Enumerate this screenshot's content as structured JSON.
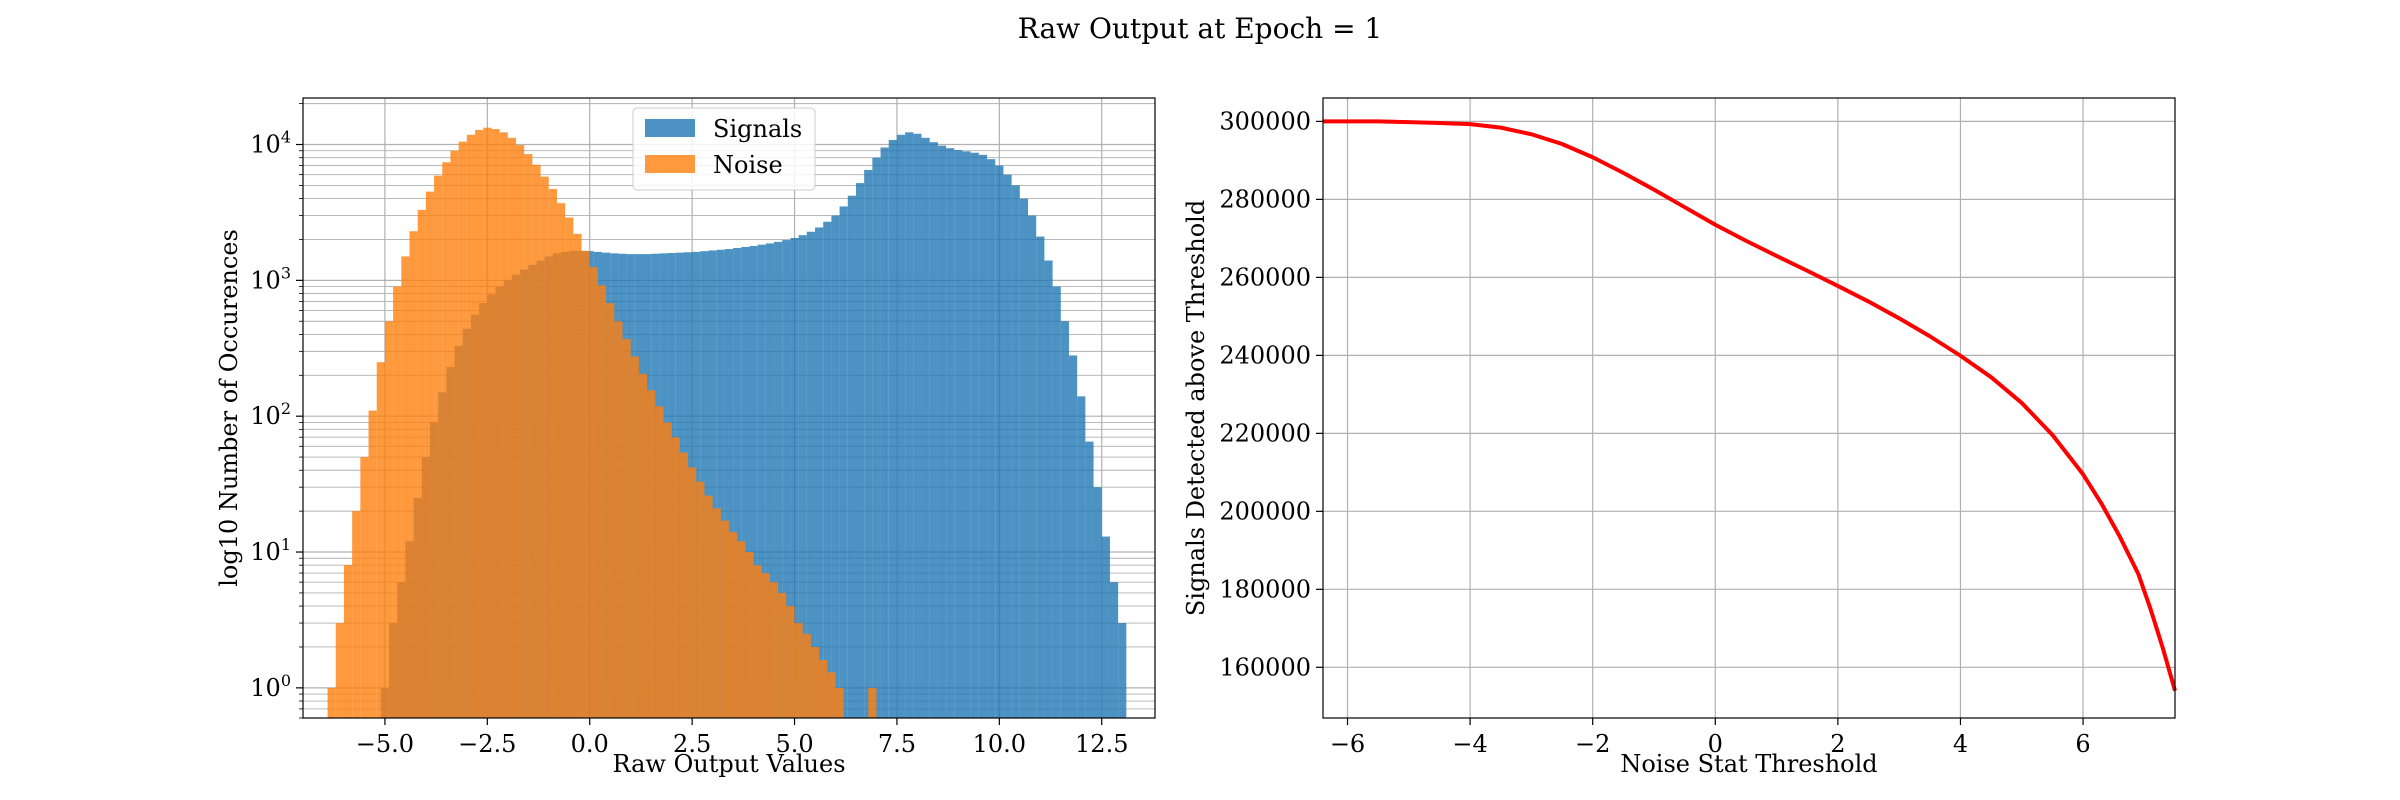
{
  "figure": {
    "suptitle": "Raw Output at Epoch = 1"
  },
  "chart_data": [
    {
      "type": "histogram",
      "xlabel": "Raw Output Values",
      "ylabel": "log10 Number of Occurences",
      "yscale": "log",
      "xlim": [
        -7.0,
        13.8
      ],
      "ylim": [
        0.6,
        22000
      ],
      "grid": true,
      "x_ticks": [
        -5.0,
        -2.5,
        0.0,
        2.5,
        5.0,
        7.5,
        10.0,
        12.5
      ],
      "x_tick_labels": [
        "−5.0",
        "−2.5",
        "0.0",
        "2.5",
        "5.0",
        "7.5",
        "10.0",
        "12.5"
      ],
      "y_ticks": [
        1,
        10,
        100,
        1000,
        10000
      ],
      "legend": {
        "location": "upper center"
      },
      "series": [
        {
          "name": "Signals",
          "color": "#1f77b4",
          "alpha": 0.8,
          "bin_width": 0.2,
          "bins": [
            [
              -5.1,
              1
            ],
            [
              -4.9,
              3
            ],
            [
              -4.7,
              6
            ],
            [
              -4.5,
              12
            ],
            [
              -4.3,
              25
            ],
            [
              -4.1,
              50
            ],
            [
              -3.9,
              90
            ],
            [
              -3.7,
              150
            ],
            [
              -3.5,
              230
            ],
            [
              -3.3,
              330
            ],
            [
              -3.1,
              440
            ],
            [
              -2.9,
              560
            ],
            [
              -2.7,
              680
            ],
            [
              -2.5,
              790
            ],
            [
              -2.3,
              900
            ],
            [
              -2.1,
              1000
            ],
            [
              -1.9,
              1100
            ],
            [
              -1.7,
              1200
            ],
            [
              -1.5,
              1300
            ],
            [
              -1.3,
              1400
            ],
            [
              -1.1,
              1500
            ],
            [
              -0.9,
              1580
            ],
            [
              -0.7,
              1620
            ],
            [
              -0.5,
              1650
            ],
            [
              -0.3,
              1650
            ],
            [
              -0.1,
              1640
            ],
            [
              0.1,
              1620
            ],
            [
              0.3,
              1600
            ],
            [
              0.5,
              1580
            ],
            [
              0.7,
              1570
            ],
            [
              0.9,
              1560
            ],
            [
              1.1,
              1560
            ],
            [
              1.3,
              1560
            ],
            [
              1.5,
              1570
            ],
            [
              1.7,
              1580
            ],
            [
              1.9,
              1590
            ],
            [
              2.1,
              1600
            ],
            [
              2.3,
              1610
            ],
            [
              2.5,
              1620
            ],
            [
              2.7,
              1640
            ],
            [
              2.9,
              1660
            ],
            [
              3.1,
              1680
            ],
            [
              3.3,
              1700
            ],
            [
              3.5,
              1730
            ],
            [
              3.7,
              1760
            ],
            [
              3.9,
              1790
            ],
            [
              4.1,
              1830
            ],
            [
              4.3,
              1870
            ],
            [
              4.5,
              1920
            ],
            [
              4.7,
              1980
            ],
            [
              4.9,
              2050
            ],
            [
              5.1,
              2150
            ],
            [
              5.3,
              2280
            ],
            [
              5.5,
              2450
            ],
            [
              5.7,
              2700
            ],
            [
              5.9,
              3000
            ],
            [
              6.1,
              3500
            ],
            [
              6.3,
              4200
            ],
            [
              6.5,
              5200
            ],
            [
              6.7,
              6500
            ],
            [
              6.9,
              8000
            ],
            [
              7.1,
              9500
            ],
            [
              7.3,
              10800
            ],
            [
              7.5,
              11800
            ],
            [
              7.7,
              12300
            ],
            [
              7.9,
              12000
            ],
            [
              8.1,
              11200
            ],
            [
              8.3,
              10400
            ],
            [
              8.5,
              9800
            ],
            [
              8.7,
              9400
            ],
            [
              8.9,
              9100
            ],
            [
              9.1,
              8900
            ],
            [
              9.3,
              8700
            ],
            [
              9.5,
              8400
            ],
            [
              9.7,
              7800
            ],
            [
              9.9,
              7000
            ],
            [
              10.1,
              6000
            ],
            [
              10.3,
              5000
            ],
            [
              10.5,
              4000
            ],
            [
              10.7,
              3000
            ],
            [
              10.9,
              2100
            ],
            [
              11.1,
              1400
            ],
            [
              11.3,
              900
            ],
            [
              11.5,
              500
            ],
            [
              11.7,
              280
            ],
            [
              11.9,
              140
            ],
            [
              12.1,
              65
            ],
            [
              12.3,
              30
            ],
            [
              12.5,
              13
            ],
            [
              12.7,
              6
            ],
            [
              12.9,
              3
            ]
          ]
        },
        {
          "name": "Noise",
          "color": "#ff7f0e",
          "alpha": 0.8,
          "bin_width": 0.2,
          "bins": [
            [
              -6.4,
              1
            ],
            [
              -6.2,
              3
            ],
            [
              -6.0,
              8
            ],
            [
              -5.8,
              20
            ],
            [
              -5.6,
              50
            ],
            [
              -5.4,
              110
            ],
            [
              -5.2,
              250
            ],
            [
              -5.0,
              500
            ],
            [
              -4.8,
              900
            ],
            [
              -4.6,
              1500
            ],
            [
              -4.4,
              2300
            ],
            [
              -4.2,
              3300
            ],
            [
              -4.0,
              4500
            ],
            [
              -3.8,
              5900
            ],
            [
              -3.6,
              7400
            ],
            [
              -3.4,
              9000
            ],
            [
              -3.2,
              10500
            ],
            [
              -3.0,
              11800
            ],
            [
              -2.8,
              12800
            ],
            [
              -2.6,
              13300
            ],
            [
              -2.4,
              13000
            ],
            [
              -2.2,
              12300
            ],
            [
              -2.0,
              11200
            ],
            [
              -1.8,
              9900
            ],
            [
              -1.6,
              8500
            ],
            [
              -1.4,
              7100
            ],
            [
              -1.2,
              5800
            ],
            [
              -1.0,
              4700
            ],
            [
              -0.8,
              3700
            ],
            [
              -0.6,
              2900
            ],
            [
              -0.4,
              2200
            ],
            [
              -0.2,
              1650
            ],
            [
              0.0,
              1250
            ],
            [
              0.2,
              920
            ],
            [
              0.4,
              680
            ],
            [
              0.6,
              500
            ],
            [
              0.8,
              370
            ],
            [
              1.0,
              275
            ],
            [
              1.2,
              205
            ],
            [
              1.4,
              155
            ],
            [
              1.6,
              118
            ],
            [
              1.8,
              90
            ],
            [
              2.0,
              70
            ],
            [
              2.2,
              54
            ],
            [
              2.4,
              42
            ],
            [
              2.6,
              33
            ],
            [
              2.8,
              26
            ],
            [
              3.0,
              21
            ],
            [
              3.2,
              17
            ],
            [
              3.4,
              14
            ],
            [
              3.6,
              12
            ],
            [
              3.8,
              10
            ],
            [
              4.0,
              8
            ],
            [
              4.2,
              7
            ],
            [
              4.4,
              6
            ],
            [
              4.6,
              5
            ],
            [
              4.8,
              4
            ],
            [
              5.0,
              3
            ],
            [
              5.2,
              2.5
            ],
            [
              5.4,
              2
            ],
            [
              5.6,
              1.6
            ],
            [
              5.8,
              1.3
            ],
            [
              6.0,
              1
            ],
            [
              6.8,
              1
            ]
          ]
        }
      ]
    },
    {
      "type": "line",
      "xlabel": "Noise Stat Threshold",
      "ylabel": "Signals Detected above Threshold",
      "xlim": [
        -6.4,
        7.5
      ],
      "ylim": [
        147000,
        306000
      ],
      "grid": true,
      "x_ticks": [
        -6,
        -4,
        -2,
        0,
        2,
        4,
        6
      ],
      "x_tick_labels": [
        "−6",
        "−4",
        "−2",
        "0",
        "2",
        "4",
        "6"
      ],
      "y_ticks": [
        160000,
        180000,
        200000,
        220000,
        240000,
        260000,
        280000,
        300000
      ],
      "series": [
        {
          "color": "#ff0000",
          "points": [
            [
              -6.4,
              300000
            ],
            [
              -5.5,
              300000
            ],
            [
              -5.0,
              299800
            ],
            [
              -4.5,
              299600
            ],
            [
              -4.0,
              299300
            ],
            [
              -3.5,
              298400
            ],
            [
              -3.0,
              296700
            ],
            [
              -2.5,
              294200
            ],
            [
              -2.0,
              290800
            ],
            [
              -1.5,
              286800
            ],
            [
              -1.0,
              282500
            ],
            [
              -0.5,
              278000
            ],
            [
              0.0,
              273500
            ],
            [
              0.5,
              269400
            ],
            [
              1.0,
              265500
            ],
            [
              1.5,
              261700
            ],
            [
              2.0,
              257800
            ],
            [
              2.5,
              253800
            ],
            [
              3.0,
              249500
            ],
            [
              3.5,
              244900
            ],
            [
              4.0,
              239900
            ],
            [
              4.5,
              234400
            ],
            [
              5.0,
              227800
            ],
            [
              5.5,
              219600
            ],
            [
              6.0,
              209500
            ],
            [
              6.3,
              202000
            ],
            [
              6.6,
              193500
            ],
            [
              6.9,
              184000
            ],
            [
              7.1,
              175000
            ],
            [
              7.3,
              165000
            ],
            [
              7.5,
              154000
            ]
          ]
        }
      ]
    }
  ]
}
